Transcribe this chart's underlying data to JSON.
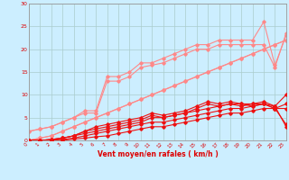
{
  "xlabel": "Vent moyen/en rafales ( km/h )",
  "xlim": [
    0,
    23
  ],
  "ylim": [
    0,
    30
  ],
  "xticks": [
    0,
    1,
    2,
    3,
    4,
    5,
    6,
    7,
    8,
    9,
    10,
    11,
    12,
    13,
    14,
    15,
    16,
    17,
    18,
    19,
    20,
    21,
    22,
    23
  ],
  "yticks": [
    0,
    5,
    10,
    15,
    20,
    25,
    30
  ],
  "background_color": "#cceeff",
  "grid_color": "#aacccc",
  "lines_dark": [
    {
      "x": [
        0,
        1,
        2,
        3,
        4,
        5,
        6,
        7,
        8,
        9,
        10,
        11,
        12,
        13,
        14,
        15,
        16,
        17,
        18,
        19,
        20,
        21,
        22,
        23
      ],
      "y": [
        0,
        0,
        0,
        0,
        0.3,
        0.5,
        0.8,
        1,
        1.5,
        2,
        2.5,
        3,
        3,
        3.5,
        4,
        4.5,
        5,
        5.5,
        6,
        6,
        6.5,
        7,
        7,
        7
      ]
    },
    {
      "x": [
        0,
        1,
        2,
        3,
        4,
        5,
        6,
        7,
        8,
        9,
        10,
        11,
        12,
        13,
        14,
        15,
        16,
        17,
        18,
        19,
        20,
        21,
        22,
        23
      ],
      "y": [
        0,
        0,
        0,
        0.2,
        0.5,
        1,
        1.5,
        2,
        2.5,
        3,
        3.5,
        4,
        4,
        4.5,
        5,
        5.5,
        6,
        6.5,
        7,
        7,
        7.5,
        8,
        7,
        3.5
      ]
    },
    {
      "x": [
        0,
        1,
        2,
        3,
        4,
        5,
        6,
        7,
        8,
        9,
        10,
        11,
        12,
        13,
        14,
        15,
        16,
        17,
        18,
        19,
        20,
        21,
        22,
        23
      ],
      "y": [
        0,
        0,
        0.2,
        0.5,
        1,
        1.5,
        2,
        2.5,
        3,
        3.5,
        4,
        5,
        5,
        5.5,
        6,
        6.5,
        7,
        7.5,
        8,
        7.5,
        8,
        8,
        7,
        8
      ]
    },
    {
      "x": [
        0,
        1,
        2,
        3,
        4,
        5,
        6,
        7,
        8,
        9,
        10,
        11,
        12,
        13,
        14,
        15,
        16,
        17,
        18,
        19,
        20,
        21,
        22,
        23
      ],
      "y": [
        0,
        0,
        0.2,
        0.5,
        1,
        2,
        2.5,
        3,
        3.5,
        4,
        4.5,
        5.5,
        5,
        5.5,
        6,
        7,
        8,
        7.5,
        8,
        8,
        7.5,
        8,
        7.5,
        10
      ]
    },
    {
      "x": [
        0,
        1,
        2,
        3,
        4,
        5,
        6,
        7,
        8,
        9,
        10,
        11,
        12,
        13,
        14,
        15,
        16,
        17,
        18,
        19,
        20,
        21,
        22,
        23
      ],
      "y": [
        0,
        0,
        0.2,
        0.5,
        1,
        2,
        3,
        3.5,
        4,
        4.5,
        5,
        6,
        5.5,
        6,
        6.5,
        7.5,
        8.5,
        8,
        8.5,
        8,
        8,
        8.5,
        7.5,
        3
      ]
    }
  ],
  "lines_light": [
    {
      "x": [
        0,
        1,
        2,
        3,
        4,
        5,
        6,
        7,
        8,
        9,
        10,
        11,
        12,
        13,
        14,
        15,
        16,
        17,
        18,
        19,
        20,
        21,
        22,
        23
      ],
      "y": [
        0,
        0.5,
        1,
        2,
        3,
        4,
        5,
        6,
        7,
        8,
        9,
        10,
        11,
        12,
        13,
        14,
        15,
        16,
        17,
        18,
        19,
        20,
        21,
        22
      ]
    },
    {
      "x": [
        0,
        1,
        2,
        3,
        4,
        5,
        6,
        7,
        8,
        9,
        10,
        11,
        12,
        13,
        14,
        15,
        16,
        17,
        18,
        19,
        20,
        21,
        22,
        23
      ],
      "y": [
        0,
        0.5,
        1,
        2,
        3,
        4,
        5,
        6,
        7,
        8,
        9,
        10,
        11,
        12,
        13,
        14,
        15,
        16,
        17,
        18,
        19,
        20,
        21,
        22
      ]
    },
    {
      "x": [
        0,
        1,
        2,
        3,
        4,
        5,
        6,
        7,
        8,
        9,
        10,
        11,
        12,
        13,
        14,
        15,
        16,
        17,
        18,
        19,
        20,
        21,
        22,
        23
      ],
      "y": [
        2,
        2.5,
        3,
        4,
        5,
        6,
        6,
        13,
        13,
        14,
        16,
        16.5,
        17,
        18,
        19,
        20,
        20,
        21,
        21,
        21,
        21,
        21,
        16,
        23.5
      ]
    },
    {
      "x": [
        0,
        1,
        2,
        3,
        4,
        5,
        6,
        7,
        8,
        9,
        10,
        11,
        12,
        13,
        14,
        15,
        16,
        17,
        18,
        19,
        20,
        21,
        22,
        23
      ],
      "y": [
        2,
        2.5,
        3,
        4,
        5,
        6.5,
        6.5,
        14,
        14,
        15,
        17,
        17,
        18,
        19,
        20,
        21,
        21,
        22,
        22,
        22,
        22,
        26,
        16.5,
        23
      ]
    }
  ]
}
